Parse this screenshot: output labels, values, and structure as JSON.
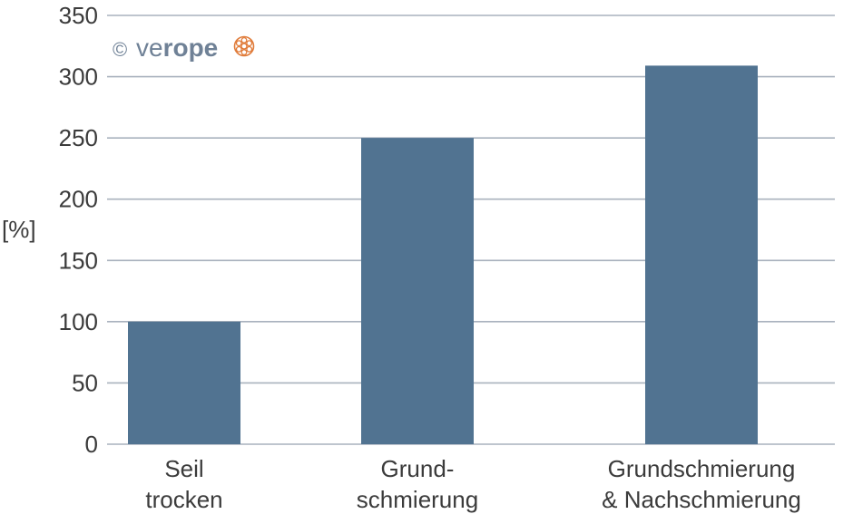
{
  "chart_data": {
    "type": "bar",
    "title": "",
    "xlabel": "",
    "ylabel": "[%]",
    "categories": [
      [
        "Seil",
        "trocken"
      ],
      [
        "Grund-",
        "schmierung"
      ],
      [
        "Grundschmierung",
        "& Nachschmierung"
      ]
    ],
    "values": [
      100,
      250,
      309
    ],
    "ylim": [
      0,
      350
    ],
    "yticks": [
      0,
      50,
      100,
      150,
      200,
      250,
      300,
      350
    ],
    "grid": true,
    "bar_color": "#517391",
    "grid_color": "#a9b2be"
  },
  "logo": {
    "copyright": "©",
    "text_light": "ve",
    "text_bold": "rope",
    "text_color": "#6f8196",
    "symbol_color": "#e07b39"
  }
}
